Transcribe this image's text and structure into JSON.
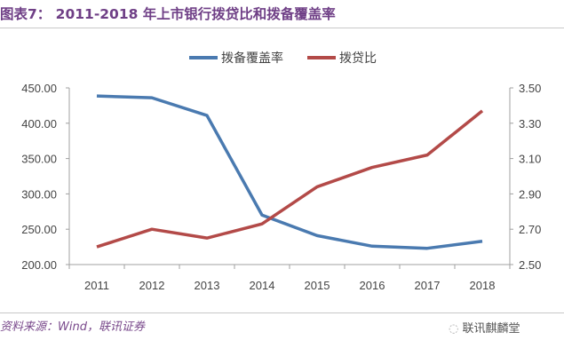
{
  "chart_data": {
    "type": "line",
    "title": "图表7： 2011-2018 年上市银行拨贷比和拨备覆盖率",
    "categories": [
      "2011",
      "2012",
      "2013",
      "2014",
      "2015",
      "2016",
      "2017",
      "2018"
    ],
    "series": [
      {
        "name": "拨备覆盖率",
        "axis": "left",
        "color": "#4a7ab0",
        "values": [
          438.5,
          436,
          411,
          270,
          241,
          226,
          223,
          233
        ]
      },
      {
        "name": "拨贷比",
        "axis": "right",
        "color": "#b34a48",
        "values": [
          2.6,
          2.7,
          2.65,
          2.73,
          2.94,
          3.05,
          3.12,
          3.37
        ]
      }
    ],
    "y_left": {
      "min": 200,
      "max": 450,
      "ticks": [
        "200.00",
        "250.00",
        "300.00",
        "350.00",
        "400.00",
        "450.00"
      ]
    },
    "y_right": {
      "min": 2.5,
      "max": 3.5,
      "ticks": [
        "2.50",
        "2.70",
        "2.90",
        "3.10",
        "3.30",
        "3.50"
      ]
    },
    "legend_position": "top",
    "grid": false
  },
  "footer": {
    "source": "资料来源：Wind，联讯证券",
    "logo_text": "联讯麒麟堂"
  }
}
